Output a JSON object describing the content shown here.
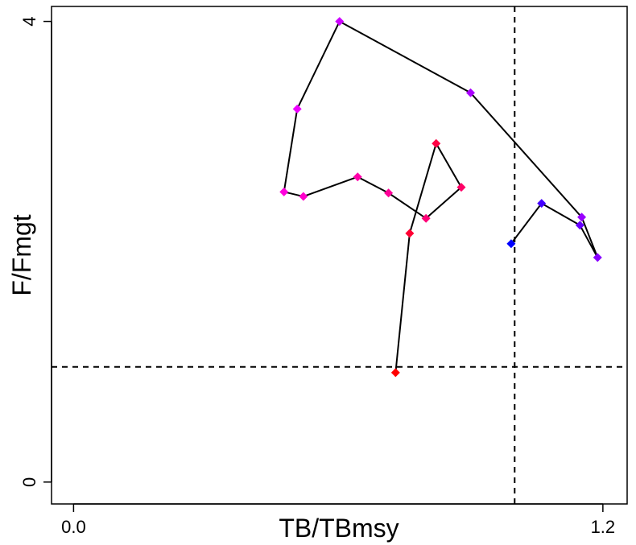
{
  "chart_data": {
    "type": "line",
    "xlabel": "TB/TBmsy",
    "ylabel": "F/Fmgt",
    "xlim": [
      -0.05,
      1.255
    ],
    "ylim": [
      -0.19,
      4.13
    ],
    "x_ticks": [
      0.0,
      1.2
    ],
    "x_tick_labels": [
      "0.0",
      "1.2"
    ],
    "y_ticks": [
      0,
      4
    ],
    "y_tick_labels": [
      "0",
      "4"
    ],
    "reference_lines": {
      "x": 1.0,
      "y": 1.0,
      "style": "dashed",
      "color": "#000000"
    },
    "grid": false,
    "legend": "none",
    "line_color": "#000000",
    "series": [
      {
        "points": [
          {
            "x": 0.73,
            "y": 0.95,
            "color": "#ff0000"
          },
          {
            "x": 0.762,
            "y": 2.16,
            "color": "#ff0033"
          },
          {
            "x": 0.822,
            "y": 2.94,
            "color": "#ff0044"
          },
          {
            "x": 0.879,
            "y": 2.56,
            "color": "#ff0066"
          },
          {
            "x": 0.799,
            "y": 2.29,
            "color": "#ff0077"
          },
          {
            "x": 0.714,
            "y": 2.51,
            "color": "#ff0099"
          },
          {
            "x": 0.644,
            "y": 2.65,
            "color": "#ff00aa"
          },
          {
            "x": 0.521,
            "y": 2.48,
            "color": "#ff00cc"
          },
          {
            "x": 0.477,
            "y": 2.52,
            "color": "#ff00dd"
          },
          {
            "x": 0.507,
            "y": 3.24,
            "color": "#ee00ff"
          },
          {
            "x": 0.603,
            "y": 4.0,
            "color": "#cc00ff"
          },
          {
            "x": 0.9,
            "y": 3.38,
            "color": "#aa00ff"
          },
          {
            "x": 1.152,
            "y": 2.3,
            "color": "#9900ff"
          },
          {
            "x": 1.188,
            "y": 1.95,
            "color": "#8800ff"
          },
          {
            "x": 1.148,
            "y": 2.23,
            "color": "#6600ff"
          },
          {
            "x": 1.061,
            "y": 2.42,
            "color": "#4400ff"
          },
          {
            "x": 0.992,
            "y": 2.07,
            "color": "#0000ff"
          }
        ]
      }
    ]
  }
}
